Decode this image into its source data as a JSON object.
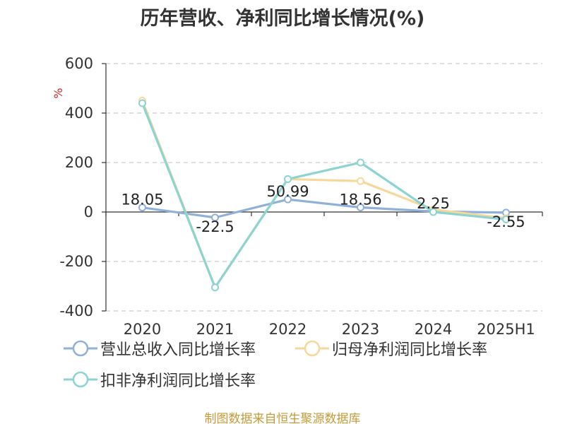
{
  "chart_data": {
    "type": "line",
    "title": "历年营收、净利同比增长情况(%)",
    "ylabel": "%",
    "categories": [
      "2020",
      "2021",
      "2022",
      "2023",
      "2024",
      "2025H1"
    ],
    "ylim": [
      -400,
      600
    ],
    "yticks": [
      600,
      400,
      200,
      0,
      -200,
      -400
    ],
    "ytick_labels": [
      "600",
      "400",
      "200",
      "0",
      "-200",
      "-400"
    ],
    "grid": true,
    "legend_position": "bottom",
    "series": [
      {
        "name": "营业总收入同比增长率",
        "color": "#8fb0d8",
        "values": [
          18.05,
          -22.5,
          50.99,
          18.56,
          2.25,
          -2.55
        ],
        "data_labels": [
          "18.05",
          "-22.5",
          "50.99",
          "18.56",
          "2.25",
          "-2.55"
        ]
      },
      {
        "name": "归母净利润同比增长率",
        "color": "#f8d79a",
        "values": [
          450,
          -305,
          133,
          125,
          10,
          -25
        ]
      },
      {
        "name": "扣非净利润同比增长率",
        "color": "#8cd3d3",
        "values": [
          440,
          -305,
          133,
          200,
          0,
          -30
        ]
      }
    ]
  },
  "source": "制图数据来自恒生聚源数据库"
}
